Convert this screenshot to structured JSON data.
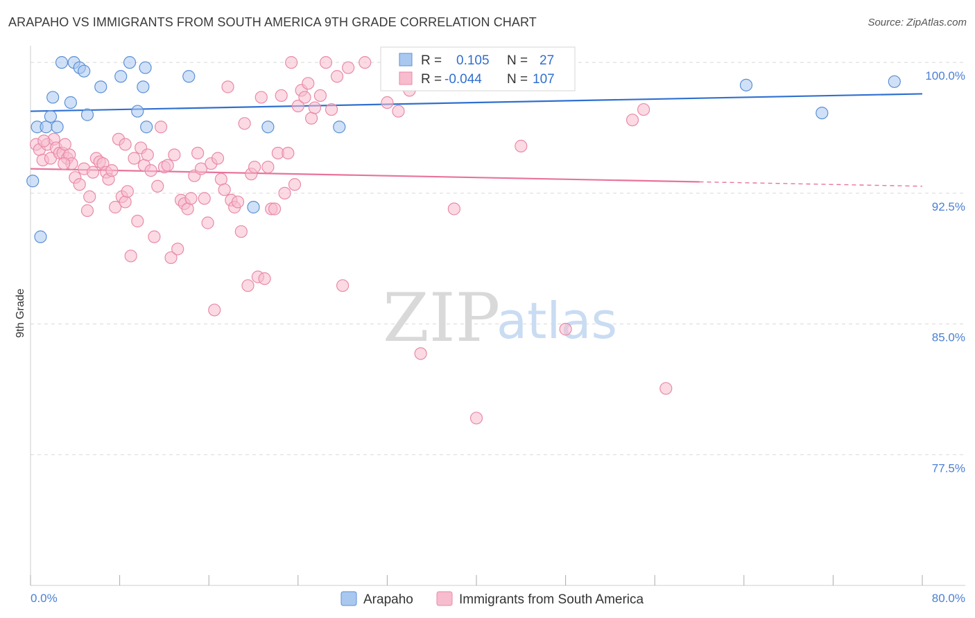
{
  "title": "ARAPAHO VS IMMIGRANTS FROM SOUTH AMERICA 9TH GRADE CORRELATION CHART",
  "source": "Source: ZipAtlas.com",
  "watermark": {
    "zip": "ZIP",
    "atlas": "atlas"
  },
  "colors": {
    "arapaho_fill": "#a9c8f0",
    "arapaho_stroke": "#5b8fd6",
    "arapaho_line": "#2f6fcf",
    "sa_fill": "#f7bccd",
    "sa_stroke": "#e98aa7",
    "sa_line": "#e8739a",
    "tick_text": "#4a7fd4",
    "grid": "#d8d8d8"
  },
  "legend": {
    "r_label": "R =",
    "n_label": "N =",
    "arapaho": {
      "r": "0.105",
      "n": "27"
    },
    "sa": {
      "r": "-0.044",
      "n": "107"
    }
  },
  "chart_data": {
    "type": "scatter",
    "title": "ARAPAHO VS IMMIGRANTS FROM SOUTH AMERICA 9TH GRADE CORRELATION CHART",
    "xlabel": "",
    "ylabel": "9th Grade",
    "xlim": [
      0,
      80
    ],
    "ylim": [
      70,
      100.8
    ],
    "x_tick_labels": [
      "0.0%",
      "80.0%"
    ],
    "y_ticks": [
      77.5,
      85.0,
      92.5,
      100.0
    ],
    "y_tick_labels": [
      "77.5%",
      "85.0%",
      "92.5%",
      "100.0%"
    ],
    "grid": true,
    "legend_position": "top-center",
    "series": [
      {
        "name": "Arapaho",
        "r": 0.105,
        "n": 27,
        "trend": {
          "x0": 0,
          "y0": 97.2,
          "x1": 80,
          "y1": 98.2,
          "solid_until": 80
        },
        "points": [
          [
            0.2,
            93.2
          ],
          [
            0.6,
            96.3
          ],
          [
            0.9,
            90.0
          ],
          [
            1.4,
            96.3
          ],
          [
            1.8,
            96.9
          ],
          [
            2.0,
            98.0
          ],
          [
            2.4,
            96.3
          ],
          [
            2.8,
            100.0
          ],
          [
            3.6,
            97.7
          ],
          [
            3.9,
            100.0
          ],
          [
            4.4,
            99.7
          ],
          [
            4.8,
            99.5
          ],
          [
            5.1,
            97.0
          ],
          [
            6.3,
            98.6
          ],
          [
            8.1,
            99.2
          ],
          [
            8.9,
            100.0
          ],
          [
            9.6,
            97.2
          ],
          [
            10.1,
            98.6
          ],
          [
            10.3,
            99.7
          ],
          [
            10.4,
            96.3
          ],
          [
            14.2,
            99.2
          ],
          [
            20.0,
            91.7
          ],
          [
            21.3,
            96.3
          ],
          [
            27.7,
            96.3
          ],
          [
            64.2,
            98.7
          ],
          [
            71.0,
            97.1
          ],
          [
            77.5,
            98.9
          ]
        ]
      },
      {
        "name": "Immigrants from South America",
        "r": -0.044,
        "n": 107,
        "trend": {
          "x0": 0,
          "y0": 93.9,
          "x1": 80,
          "y1": 92.9,
          "solid_until": 60
        },
        "points": [
          [
            0.5,
            95.3
          ],
          [
            0.8,
            95.0
          ],
          [
            1.1,
            94.4
          ],
          [
            1.5,
            95.3
          ],
          [
            1.8,
            94.5
          ],
          [
            2.1,
            95.6
          ],
          [
            2.3,
            95.1
          ],
          [
            2.6,
            94.8
          ],
          [
            2.9,
            94.8
          ],
          [
            3.1,
            95.3
          ],
          [
            3.3,
            94.5
          ],
          [
            3.5,
            94.7
          ],
          [
            3.7,
            94.2
          ],
          [
            4.0,
            93.4
          ],
          [
            4.4,
            93.0
          ],
          [
            4.8,
            93.9
          ],
          [
            5.1,
            91.5
          ],
          [
            5.3,
            92.3
          ],
          [
            5.6,
            93.7
          ],
          [
            5.9,
            94.5
          ],
          [
            6.2,
            94.3
          ],
          [
            6.5,
            94.2
          ],
          [
            6.8,
            93.7
          ],
          [
            7.0,
            93.3
          ],
          [
            7.3,
            93.8
          ],
          [
            7.6,
            91.7
          ],
          [
            7.9,
            95.6
          ],
          [
            8.2,
            92.3
          ],
          [
            8.5,
            92.0
          ],
          [
            8.7,
            92.6
          ],
          [
            9.0,
            88.9
          ],
          [
            9.3,
            94.5
          ],
          [
            9.6,
            90.9
          ],
          [
            9.9,
            95.1
          ],
          [
            10.2,
            94.1
          ],
          [
            10.5,
            94.7
          ],
          [
            10.8,
            93.8
          ],
          [
            11.1,
            90.0
          ],
          [
            11.4,
            92.9
          ],
          [
            11.7,
            96.3
          ],
          [
            12.0,
            94.0
          ],
          [
            12.3,
            94.1
          ],
          [
            12.6,
            88.8
          ],
          [
            12.9,
            94.7
          ],
          [
            13.2,
            89.3
          ],
          [
            13.5,
            92.1
          ],
          [
            13.8,
            91.9
          ],
          [
            14.1,
            91.6
          ],
          [
            14.4,
            92.2
          ],
          [
            14.7,
            93.5
          ],
          [
            15.0,
            94.8
          ],
          [
            15.3,
            93.9
          ],
          [
            15.6,
            92.2
          ],
          [
            15.9,
            90.8
          ],
          [
            16.2,
            94.2
          ],
          [
            16.5,
            85.8
          ],
          [
            16.8,
            94.5
          ],
          [
            17.1,
            93.3
          ],
          [
            17.4,
            92.7
          ],
          [
            17.7,
            98.6
          ],
          [
            18.0,
            92.1
          ],
          [
            18.3,
            91.7
          ],
          [
            18.6,
            92.0
          ],
          [
            18.9,
            90.3
          ],
          [
            19.2,
            96.5
          ],
          [
            19.5,
            87.2
          ],
          [
            19.8,
            93.6
          ],
          [
            20.1,
            94.0
          ],
          [
            20.4,
            87.7
          ],
          [
            20.7,
            98.0
          ],
          [
            21.0,
            87.6
          ],
          [
            21.3,
            94.0
          ],
          [
            21.6,
            91.6
          ],
          [
            21.9,
            91.6
          ],
          [
            22.2,
            94.8
          ],
          [
            22.5,
            98.1
          ],
          [
            22.8,
            92.5
          ],
          [
            23.1,
            94.8
          ],
          [
            23.4,
            100.0
          ],
          [
            23.7,
            93.0
          ],
          [
            24.0,
            97.5
          ],
          [
            24.3,
            98.4
          ],
          [
            24.6,
            98.0
          ],
          [
            24.9,
            98.8
          ],
          [
            25.2,
            96.8
          ],
          [
            25.5,
            97.4
          ],
          [
            26.0,
            98.1
          ],
          [
            26.5,
            100.0
          ],
          [
            27.0,
            97.3
          ],
          [
            27.5,
            99.2
          ],
          [
            28.0,
            87.2
          ],
          [
            28.5,
            99.7
          ],
          [
            30.0,
            100.0
          ],
          [
            32.0,
            97.7
          ],
          [
            33.0,
            97.2
          ],
          [
            34.0,
            98.4
          ],
          [
            35.0,
            83.3
          ],
          [
            38.0,
            91.6
          ],
          [
            40.0,
            79.6
          ],
          [
            44.0,
            95.2
          ],
          [
            48.0,
            84.7
          ],
          [
            54.0,
            96.7
          ],
          [
            55.0,
            97.3
          ],
          [
            57.0,
            81.3
          ],
          [
            8.5,
            95.3
          ],
          [
            3.0,
            94.2
          ],
          [
            1.2,
            95.5
          ]
        ]
      }
    ]
  },
  "bottom_legend": [
    {
      "label": "Arapaho"
    },
    {
      "label": "Immigrants from South America"
    }
  ]
}
